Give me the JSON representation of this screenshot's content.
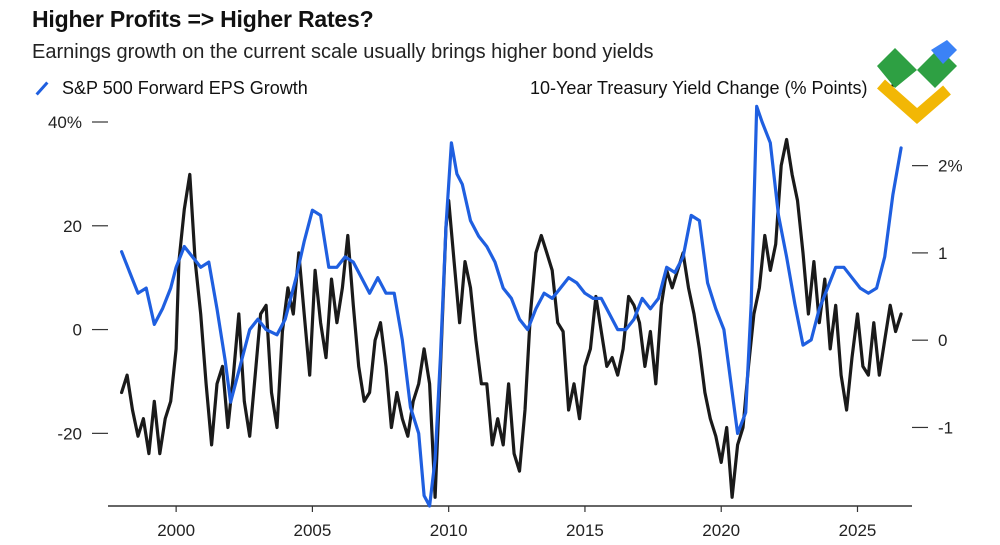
{
  "title": "Higher Profits => Higher Rates?",
  "subtitle": "Earnings growth on the current scale usually brings higher bond yields",
  "colors": {
    "eps": "#1f5fe0",
    "yield": "#1a1a1a",
    "logo_green": "#2ea043",
    "logo_blue": "#3b82f6",
    "logo_yellow": "#f2b705"
  },
  "chart_data": {
    "type": "line",
    "title": "Higher Profits => Higher Rates?",
    "subtitle": "Earnings growth on the current scale usually brings higher bond yields",
    "x_ticks": [
      "2000",
      "2005",
      "2010",
      "2015",
      "2020",
      "2025"
    ],
    "xlim": [
      1997.5,
      2027
    ],
    "left_axis": {
      "ylim": [
        -34,
        40
      ],
      "ticks": [
        "40%",
        "20",
        "0",
        "-20"
      ]
    },
    "right_axis": {
      "ylim": [
        -1.9,
        2.5
      ],
      "ticks": [
        "2%",
        "1",
        "0",
        "-1"
      ]
    },
    "series": [
      {
        "name": "S&P 500 Forward EPS Growth",
        "axis": "left",
        "x": [
          1998.0,
          1998.3,
          1998.6,
          1998.9,
          1999.2,
          1999.5,
          1999.8,
          2000.0,
          2000.3,
          2000.6,
          2000.9,
          2001.2,
          2001.5,
          2001.8,
          2002.0,
          2002.3,
          2002.7,
          2003.0,
          2003.3,
          2003.7,
          2004.0,
          2004.4,
          2004.7,
          2005.0,
          2005.3,
          2005.6,
          2005.9,
          2006.2,
          2006.5,
          2006.8,
          2007.1,
          2007.4,
          2007.7,
          2008.0,
          2008.3,
          2008.6,
          2008.9,
          2009.1,
          2009.3,
          2009.5,
          2009.7,
          2009.9,
          2010.1,
          2010.3,
          2010.5,
          2010.8,
          2011.1,
          2011.4,
          2011.7,
          2012.0,
          2012.3,
          2012.6,
          2012.9,
          2013.2,
          2013.5,
          2013.8,
          2014.1,
          2014.4,
          2014.7,
          2015.0,
          2015.3,
          2015.6,
          2015.9,
          2016.2,
          2016.5,
          2016.8,
          2017.1,
          2017.4,
          2017.7,
          2018.0,
          2018.3,
          2018.6,
          2018.9,
          2019.2,
          2019.5,
          2019.8,
          2020.1,
          2020.4,
          2020.6,
          2020.9,
          2021.1,
          2021.3,
          2021.5,
          2021.8,
          2022.1,
          2022.4,
          2022.7,
          2023.0,
          2023.3,
          2023.6,
          2023.9,
          2024.2,
          2024.5,
          2024.8,
          2025.1,
          2025.4,
          2025.7,
          2026.0,
          2026.3,
          2026.6
        ],
        "values": [
          15,
          11,
          7,
          8,
          1,
          4,
          8,
          12,
          16,
          14,
          12,
          13,
          4,
          -6,
          -14,
          -8,
          0,
          2,
          0,
          -1,
          2,
          10,
          17,
          23,
          22,
          12,
          12,
          14,
          13,
          10,
          7,
          10,
          7,
          7,
          -2,
          -15,
          -20,
          -32,
          -34,
          -25,
          -5,
          20,
          36,
          30,
          28,
          21,
          18,
          16,
          13,
          8,
          6,
          2,
          0,
          4,
          7,
          6,
          8,
          10,
          9,
          7,
          6,
          6,
          3,
          0,
          0,
          2,
          6,
          4,
          6,
          12,
          11,
          14,
          22,
          21,
          9,
          4,
          0,
          -12,
          -20,
          -16,
          5,
          43,
          40,
          36,
          22,
          14,
          5,
          -3,
          -2,
          4,
          8,
          12,
          12,
          10,
          8,
          7,
          8,
          14,
          26,
          35
        ]
      },
      {
        "name": "10-Year Treasury Yield Change (% Points)",
        "axis": "right",
        "x": [
          1998.0,
          1998.2,
          1998.4,
          1998.6,
          1998.8,
          1999.0,
          1999.2,
          1999.4,
          1999.6,
          1999.8,
          2000.0,
          2000.1,
          2000.3,
          2000.5,
          2000.7,
          2000.9,
          2001.1,
          2001.3,
          2001.5,
          2001.7,
          2001.9,
          2002.1,
          2002.3,
          2002.5,
          2002.7,
          2002.9,
          2003.1,
          2003.3,
          2003.5,
          2003.7,
          2003.9,
          2004.1,
          2004.3,
          2004.5,
          2004.7,
          2004.9,
          2005.1,
          2005.3,
          2005.5,
          2005.7,
          2005.9,
          2006.1,
          2006.3,
          2006.5,
          2006.7,
          2006.9,
          2007.1,
          2007.3,
          2007.5,
          2007.7,
          2007.9,
          2008.1,
          2008.3,
          2008.5,
          2008.7,
          2008.9,
          2009.1,
          2009.3,
          2009.5,
          2009.7,
          2009.9,
          2010.0,
          2010.2,
          2010.4,
          2010.6,
          2010.8,
          2011.0,
          2011.2,
          2011.4,
          2011.6,
          2011.8,
          2012.0,
          2012.2,
          2012.4,
          2012.6,
          2012.8,
          2013.0,
          2013.2,
          2013.4,
          2013.6,
          2013.8,
          2014.0,
          2014.2,
          2014.4,
          2014.6,
          2014.8,
          2015.0,
          2015.2,
          2015.4,
          2015.6,
          2015.8,
          2016.0,
          2016.2,
          2016.4,
          2016.6,
          2016.8,
          2017.0,
          2017.2,
          2017.4,
          2017.6,
          2017.8,
          2018.0,
          2018.2,
          2018.4,
          2018.6,
          2018.8,
          2019.0,
          2019.2,
          2019.4,
          2019.6,
          2019.8,
          2020.0,
          2020.2,
          2020.4,
          2020.6,
          2020.8,
          2021.0,
          2021.2,
          2021.4,
          2021.6,
          2021.8,
          2022.0,
          2022.2,
          2022.4,
          2022.6,
          2022.8,
          2023.0,
          2023.2,
          2023.4,
          2023.6,
          2023.8,
          2024.0,
          2024.2,
          2024.4,
          2024.6,
          2024.8,
          2025.0,
          2025.2,
          2025.4,
          2025.6,
          2025.8,
          2026.0,
          2026.2,
          2026.4,
          2026.6
        ],
        "values": [
          -0.6,
          -0.4,
          -0.8,
          -1.1,
          -0.9,
          -1.3,
          -0.7,
          -1.3,
          -0.9,
          -0.7,
          -0.1,
          0.9,
          1.5,
          1.9,
          0.9,
          0.3,
          -0.5,
          -1.2,
          -0.5,
          -0.3,
          -1.0,
          -0.4,
          0.3,
          -0.7,
          -1.1,
          -0.4,
          0.3,
          0.4,
          -0.6,
          -1.0,
          0.1,
          0.6,
          0.3,
          1.0,
          0.3,
          -0.4,
          0.8,
          0.2,
          -0.2,
          0.7,
          0.2,
          0.6,
          1.2,
          0.4,
          -0.3,
          -0.7,
          -0.6,
          0.0,
          0.2,
          -0.3,
          -1.0,
          -0.6,
          -0.9,
          -1.1,
          -0.7,
          -0.5,
          -0.1,
          -0.5,
          -1.8,
          -0.3,
          1.3,
          1.6,
          0.9,
          0.2,
          0.9,
          0.6,
          0.0,
          -0.5,
          -0.5,
          -1.2,
          -0.9,
          -1.2,
          -0.5,
          -1.3,
          -1.5,
          -0.8,
          0.3,
          1.0,
          1.2,
          1.0,
          0.8,
          0.2,
          0.1,
          -0.8,
          -0.5,
          -0.9,
          -0.3,
          -0.1,
          0.5,
          0.1,
          -0.3,
          -0.2,
          -0.4,
          -0.1,
          0.5,
          0.4,
          0.2,
          -0.3,
          0.1,
          -0.5,
          0.4,
          0.8,
          0.6,
          0.8,
          1.0,
          0.6,
          0.3,
          -0.1,
          -0.6,
          -0.9,
          -1.1,
          -1.4,
          -1.0,
          -1.8,
          -1.2,
          -1.0,
          -0.3,
          0.3,
          0.6,
          1.2,
          0.8,
          1.1,
          2.0,
          2.3,
          1.9,
          1.6,
          1.0,
          0.3,
          0.9,
          0.2,
          0.7,
          -0.1,
          0.4,
          -0.4,
          -0.8,
          -0.2,
          0.3,
          -0.3,
          -0.4,
          0.2,
          -0.4,
          0.0,
          0.4,
          0.1,
          0.3
        ]
      }
    ]
  }
}
